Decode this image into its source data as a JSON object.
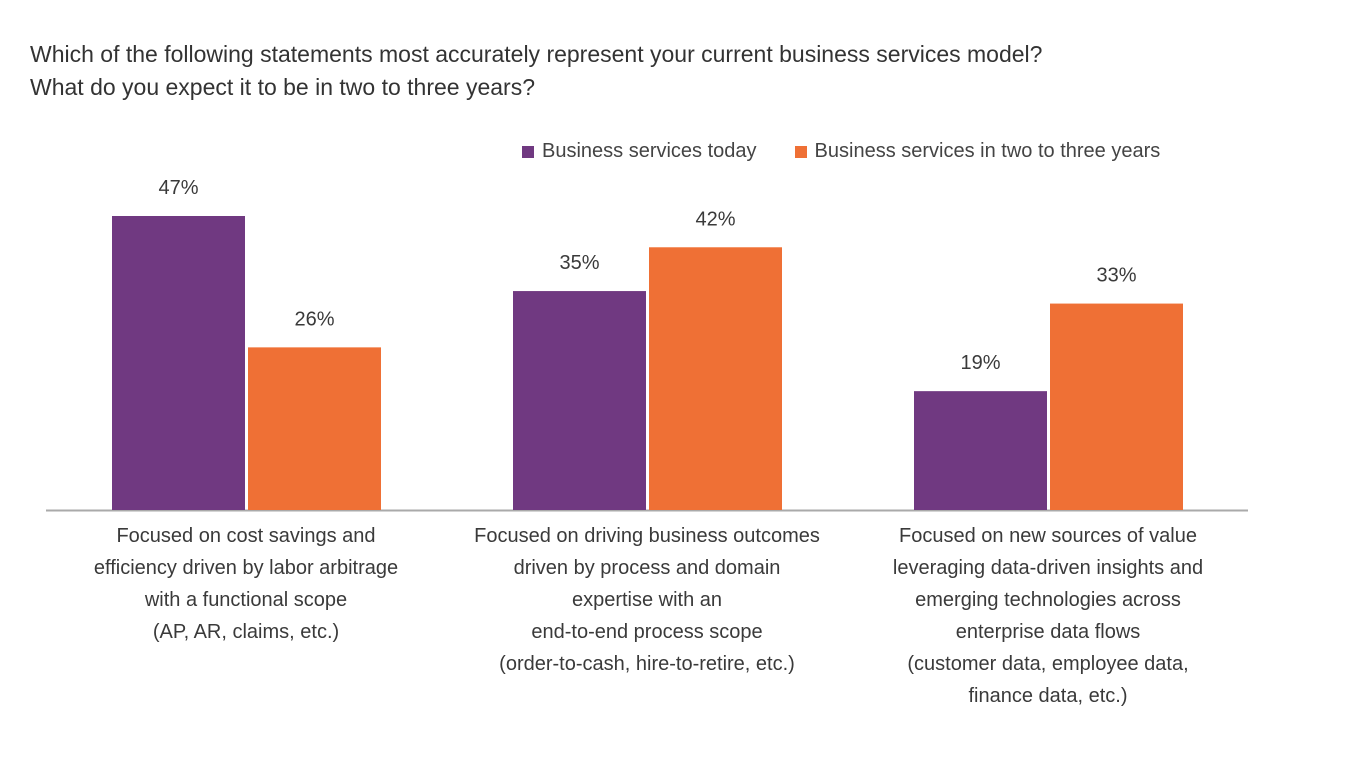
{
  "title_lines": [
    "Which of the following statements most accurately represent your current business services model?",
    "What do you expect it to be in two to three years?"
  ],
  "colors": {
    "today": "#703981",
    "future": "#ef7035",
    "axis": "#aaaaaa"
  },
  "chart_data": {
    "type": "bar",
    "title": "Which of the following statements most accurately represent your current business services model? What do you expect it to be in two to three years?",
    "xlabel": "",
    "ylabel": "",
    "ylim": [
      0,
      50
    ],
    "grid": false,
    "legend": "top-right",
    "categories": [
      [
        "Focused on cost savings and",
        "efficiency driven by labor arbitrage",
        "with a  functional scope",
        "(AP, AR, claims, etc.)"
      ],
      [
        "Focused on driving business outcomes",
        "driven by process and domain",
        "expertise with an",
        "end-to-end process scope",
        "(order-to-cash, hire-to-retire, etc.)"
      ],
      [
        "Focused on new sources of value",
        "leveraging data-driven insights and",
        "emerging technologies across",
        "enterprise data flows",
        "(customer data, employee data,",
        "finance data, etc.)"
      ]
    ],
    "series": [
      {
        "name": "Business services today",
        "values": [
          47,
          35,
          19
        ],
        "labels": [
          "47%",
          "35%",
          "19%"
        ]
      },
      {
        "name": "Business services in two to three years",
        "values": [
          26,
          42,
          33
        ],
        "labels": [
          "26%",
          "42%",
          "33%"
        ]
      }
    ]
  }
}
